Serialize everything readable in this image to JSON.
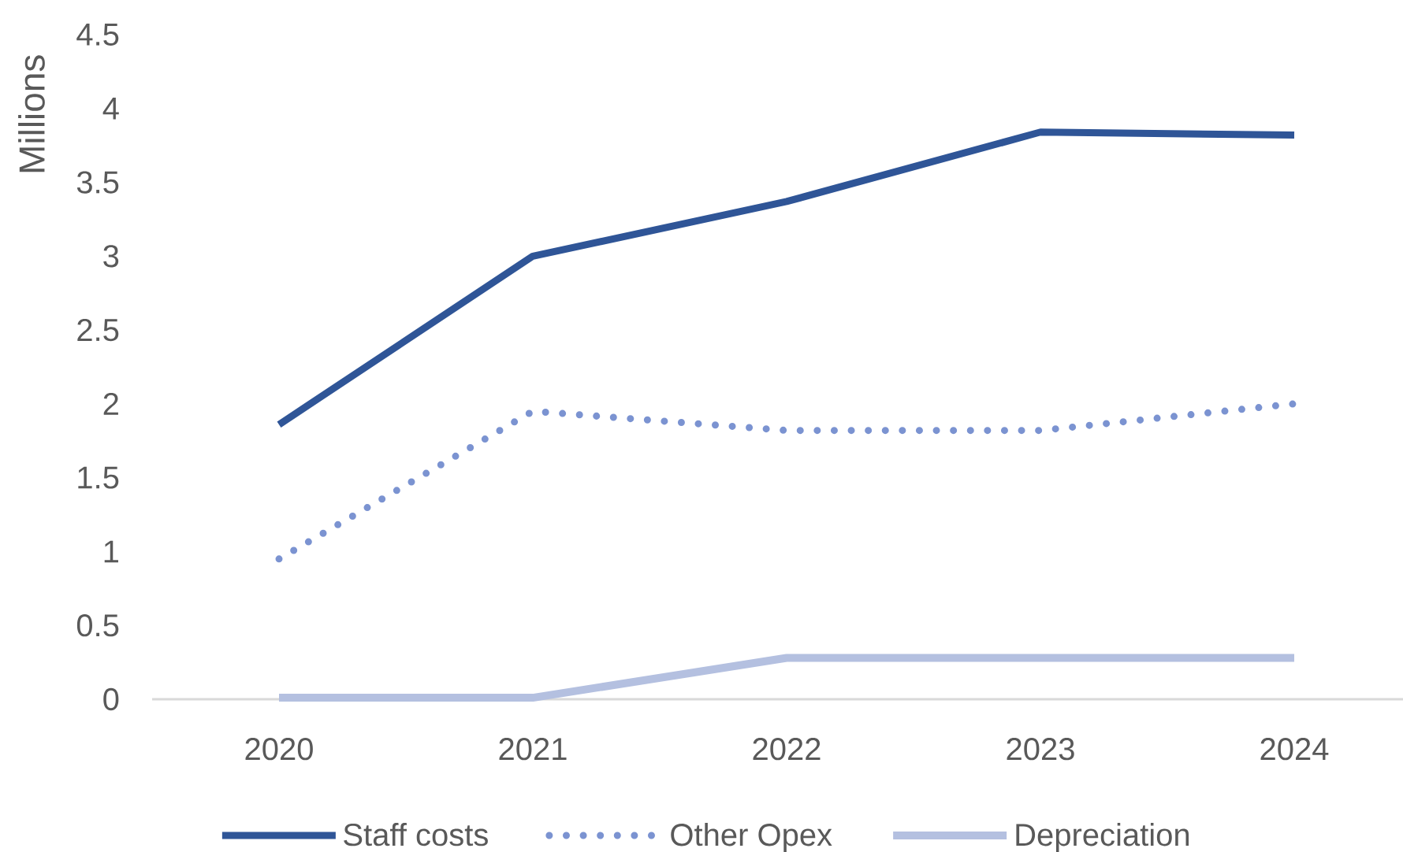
{
  "chart_data": {
    "type": "line",
    "categories": [
      "2020",
      "2021",
      "2022",
      "2023",
      "2024"
    ],
    "ylabel": "Millions",
    "ylim": [
      0,
      4.5
    ],
    "yticks": [
      0,
      0.5,
      1,
      1.5,
      2,
      2.5,
      3,
      3.5,
      4,
      4.5
    ],
    "grid": false,
    "legend": "bottom",
    "series": [
      {
        "name": "Staff costs",
        "color": "#2f5597",
        "values": [
          1.86,
          3.0,
          3.37,
          3.84,
          3.82
        ],
        "line_style": "solid"
      },
      {
        "name": "Other Opex",
        "color": "#7b93d1",
        "values": [
          0.95,
          1.95,
          1.82,
          1.82,
          2.0
        ],
        "line_style": "dotted"
      },
      {
        "name": "Depreciation",
        "color": "#b4c0e0",
        "values": [
          0.01,
          0.01,
          0.28,
          0.28,
          0.28
        ],
        "line_style": "solid"
      }
    ]
  }
}
